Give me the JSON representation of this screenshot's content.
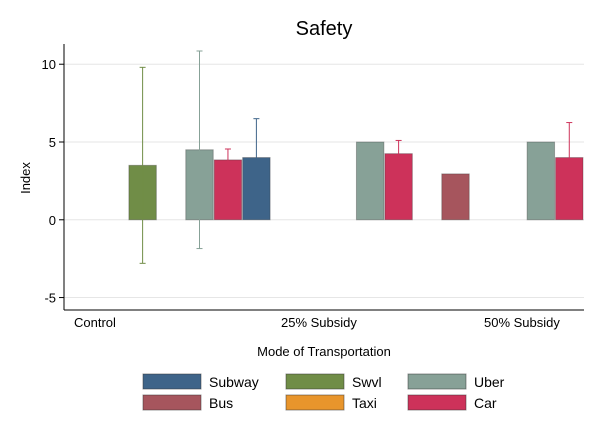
{
  "chart_data": {
    "type": "bar",
    "title": "Safety",
    "xlabel": "Mode of Transportation",
    "ylabel": "Index",
    "ylim": [
      -5.8,
      11.3
    ],
    "yticks": [
      -5,
      0,
      5,
      10
    ],
    "ytick_labels": [
      "-5",
      "0",
      "5",
      "10"
    ],
    "grid": true,
    "legend_position": "bottom",
    "groups": [
      "Control",
      "25% Subsidy",
      "50% Subsidy"
    ],
    "series_order": [
      "Subway",
      "Bus",
      "Swvl",
      "Taxi",
      "Uber",
      "Car"
    ],
    "series": [
      {
        "name": "Subway",
        "color": "#3e6489",
        "values": [
          null,
          4.0,
          null
        ],
        "err_low": [
          null,
          1.5,
          null
        ],
        "err_high": [
          null,
          6.5,
          null
        ]
      },
      {
        "name": "Bus",
        "color": "#a6555d",
        "values": [
          null,
          null,
          2.95
        ],
        "err_low": [
          null,
          null,
          null
        ],
        "err_high": [
          null,
          null,
          null
        ]
      },
      {
        "name": "Swvl",
        "color": "#708d47",
        "values": [
          3.5,
          null,
          null
        ],
        "err_low": [
          -2.8,
          null,
          null
        ],
        "err_high": [
          9.8,
          null,
          null
        ]
      },
      {
        "name": "Taxi",
        "color": "#e8952c",
        "values": [
          null,
          null,
          null
        ],
        "err_low": [
          null,
          null,
          null
        ],
        "err_high": [
          null,
          null,
          null
        ]
      },
      {
        "name": "Uber",
        "color": "#87a197",
        "values": [
          4.5,
          5.0,
          5.0
        ],
        "err_low": [
          -1.85,
          null,
          null
        ],
        "err_high": [
          10.85,
          null,
          null
        ]
      },
      {
        "name": "Car",
        "color": "#cd325a",
        "values": [
          3.85,
          4.25,
          4.0
        ],
        "err_low": [
          3.15,
          3.4,
          1.75
        ],
        "err_high": [
          4.55,
          5.1,
          6.25
        ]
      }
    ]
  }
}
